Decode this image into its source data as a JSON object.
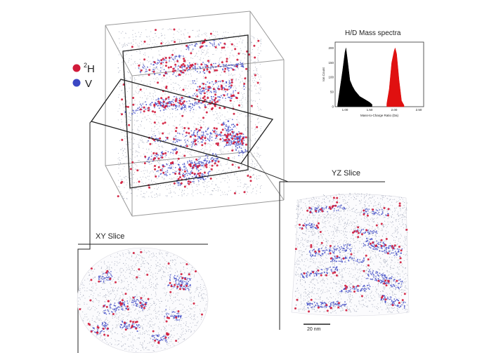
{
  "legend": {
    "items": [
      {
        "label_sup": "2",
        "label": "H",
        "color": "#d11a3a"
      },
      {
        "label_sup": "",
        "label": "V",
        "color": "#3b47c4"
      }
    ]
  },
  "panels": {
    "xy_slice": {
      "label": "XY Slice"
    },
    "yz_slice": {
      "label": "YZ Slice",
      "scale_bar": "20 nm"
    }
  },
  "inset": {
    "title": "H/D Mass spectra",
    "ylabel": "Ion Count",
    "xlabel": "Mass-to-Charge Ratio (Da)",
    "yticks": [
      "200",
      "150",
      "100",
      "50",
      "0"
    ],
    "xticks": [
      "1.00",
      "1.50",
      "2.00",
      "2.50"
    ]
  },
  "colors": {
    "hydrogen": "#d11a3a",
    "vanadium": "#3b47c4",
    "matrix": "#9aa0b4",
    "frame": "#8c8c8c",
    "plane": "#222222",
    "peak_h": "#000000",
    "peak_d": "#e01010"
  },
  "chart_data": {
    "type": "area",
    "xlabel": "Mass-to-Charge Ratio (Da)",
    "ylabel": "Ion Count",
    "xlim": [
      0.8,
      2.6
    ],
    "ylim": [
      0,
      220
    ],
    "series": [
      {
        "color": "#000000",
        "x": [
          0.85,
          0.95,
          1.0,
          1.02,
          1.05,
          1.1,
          1.15,
          1.2,
          1.3,
          1.4,
          1.5,
          1.55
        ],
        "y": [
          5,
          120,
          185,
          200,
          160,
          90,
          70,
          55,
          35,
          25,
          15,
          8
        ]
      },
      {
        "color": "#e01010",
        "x": [
          1.85,
          1.9,
          1.95,
          2.0,
          2.02,
          2.05,
          2.1,
          2.15,
          2.2
        ],
        "y": [
          10,
          60,
          150,
          190,
          200,
          180,
          90,
          20,
          5
        ]
      }
    ]
  }
}
